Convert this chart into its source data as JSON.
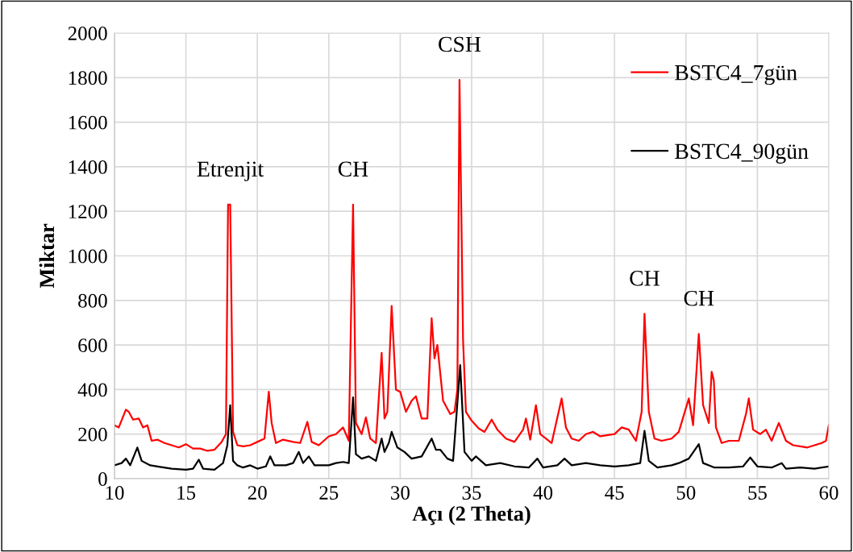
{
  "chart_data": {
    "type": "line",
    "xlabel": "Açı (2 Theta)",
    "ylabel": "Miktar",
    "xlim": [
      10,
      60
    ],
    "ylim": [
      0,
      2000
    ],
    "xticks": [
      10,
      15,
      20,
      25,
      30,
      35,
      40,
      45,
      50,
      55,
      60
    ],
    "yticks": [
      0,
      200,
      400,
      600,
      800,
      1000,
      1200,
      1400,
      1600,
      1800,
      2000
    ],
    "grid": true,
    "legend": "top right",
    "marker": "none",
    "line_style": "solid",
    "series": [
      {
        "name": "BSTC4_7gün",
        "color": "#ff0000",
        "x": [
          10,
          10.3,
          10.8,
          11.0,
          11.3,
          11.7,
          12.0,
          12.3,
          12.6,
          13,
          13.5,
          14,
          14.5,
          15,
          15.5,
          16,
          16.5,
          17,
          17.5,
          17.8,
          17.95,
          18.1,
          18.3,
          18.6,
          19,
          19.5,
          20,
          20.5,
          20.8,
          21.0,
          21.3,
          21.8,
          22.5,
          23,
          23.5,
          23.8,
          24.3,
          25,
          25.5,
          26,
          26.4,
          26.7,
          26.9,
          27.3,
          27.6,
          27.9,
          28.3,
          28.7,
          28.9,
          29.1,
          29.4,
          29.7,
          30,
          30.4,
          30.8,
          31.1,
          31.5,
          31.9,
          32.2,
          32.4,
          32.6,
          33,
          33.5,
          33.8,
          34.0,
          34.15,
          34.4,
          34.6,
          35,
          35.5,
          35.9,
          36.4,
          36.8,
          37.4,
          38,
          38.6,
          38.8,
          39.1,
          39.5,
          39.8,
          40.3,
          40.6,
          41.3,
          41.6,
          42.0,
          42.5,
          43,
          43.5,
          44,
          45,
          45.5,
          46,
          46.5,
          46.9,
          47.1,
          47.4,
          47.8,
          48.3,
          49,
          49.5,
          50.2,
          50.5,
          50.9,
          51.2,
          51.6,
          51.8,
          51.95,
          52.1,
          52.5,
          53,
          53.7,
          54.2,
          54.4,
          54.7,
          55.2,
          55.6,
          56,
          56.5,
          57,
          57.5,
          58,
          58.5,
          59,
          59.5,
          59.8,
          60
        ],
        "values": [
          240,
          230,
          310,
          300,
          265,
          270,
          230,
          240,
          170,
          175,
          160,
          150,
          140,
          155,
          135,
          135,
          125,
          130,
          165,
          200,
          1230,
          1230,
          210,
          150,
          145,
          150,
          165,
          180,
          390,
          250,
          160,
          175,
          165,
          160,
          255,
          165,
          150,
          190,
          200,
          230,
          170,
          1230,
          250,
          200,
          275,
          180,
          160,
          565,
          270,
          300,
          775,
          400,
          390,
          300,
          350,
          370,
          270,
          270,
          720,
          540,
          600,
          350,
          290,
          300,
          400,
          1790,
          620,
          300,
          260,
          225,
          210,
          265,
          220,
          180,
          165,
          220,
          270,
          175,
          330,
          200,
          175,
          160,
          360,
          230,
          180,
          170,
          200,
          210,
          190,
          200,
          230,
          220,
          170,
          300,
          740,
          300,
          180,
          170,
          180,
          210,
          360,
          240,
          650,
          330,
          250,
          480,
          440,
          230,
          160,
          170,
          170,
          290,
          360,
          220,
          200,
          220,
          170,
          250,
          170,
          150,
          145,
          140,
          150,
          160,
          170,
          240
        ]
      },
      {
        "name": "BSTC4_90gün",
        "color": "#000000",
        "x": [
          10,
          10.5,
          10.8,
          11.1,
          11.6,
          11.9,
          12.5,
          13,
          14,
          15,
          15.5,
          15.9,
          16.2,
          17,
          17.6,
          17.9,
          18.1,
          18.3,
          18.6,
          19,
          19.5,
          20,
          20.6,
          20.9,
          21.2,
          22,
          22.5,
          22.9,
          23.2,
          23.6,
          24,
          25,
          25.5,
          26,
          26.4,
          26.7,
          26.9,
          27.3,
          27.8,
          28.3,
          28.7,
          28.9,
          29.2,
          29.4,
          29.8,
          30.3,
          30.8,
          31.5,
          32.2,
          32.5,
          32.8,
          33.3,
          33.7,
          34.2,
          34.5,
          35,
          35.3,
          36,
          37,
          38,
          39,
          39.6,
          40,
          41,
          41.5,
          42,
          43,
          44,
          45,
          46,
          46.8,
          47.1,
          47.4,
          48,
          49,
          49.5,
          50.2,
          50.9,
          51.2,
          52,
          53,
          54,
          54.5,
          55,
          56,
          56.7,
          57,
          58,
          59,
          60
        ],
        "values": [
          60,
          70,
          90,
          60,
          140,
          80,
          60,
          55,
          45,
          40,
          45,
          85,
          45,
          40,
          70,
          150,
          330,
          80,
          60,
          50,
          60,
          45,
          55,
          100,
          60,
          60,
          70,
          120,
          70,
          100,
          60,
          60,
          70,
          75,
          70,
          365,
          110,
          90,
          100,
          80,
          180,
          120,
          160,
          210,
          140,
          120,
          90,
          100,
          180,
          130,
          130,
          90,
          80,
          510,
          120,
          80,
          100,
          60,
          70,
          55,
          50,
          90,
          50,
          60,
          90,
          60,
          70,
          60,
          55,
          60,
          70,
          215,
          80,
          50,
          60,
          70,
          90,
          155,
          70,
          50,
          50,
          55,
          95,
          55,
          50,
          70,
          45,
          50,
          45,
          55
        ]
      }
    ],
    "annotations": [
      {
        "text": "Etrenjit",
        "x": 18.1,
        "y": 1230
      },
      {
        "text": "CH",
        "x": 26.7,
        "y": 1230
      },
      {
        "text": "CSH",
        "x": 34.15,
        "y": 1790
      },
      {
        "text": "CH",
        "x": 47.1,
        "y": 740
      },
      {
        "text": "CH",
        "x": 50.9,
        "y": 650
      }
    ]
  }
}
